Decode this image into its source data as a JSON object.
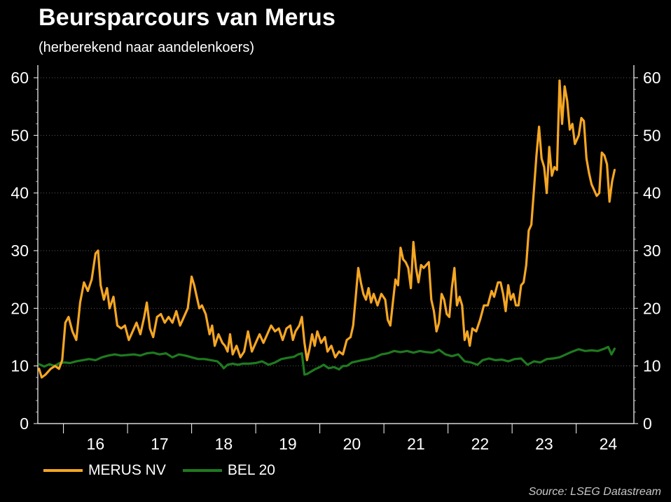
{
  "header": {
    "title": "Beursparcours van Merus",
    "subtitle": "(herberekend naar aandelenkoers)"
  },
  "source": "Source: LSEG Datastream",
  "chart_data": {
    "type": "line",
    "title": "Beursparcours van Merus",
    "subtitle": "(herberekend naar aandelenkoers)",
    "x_range": [
      2015.6,
      2024.9
    ],
    "ylim": [
      0,
      60
    ],
    "y_ticks": [
      0,
      10,
      20,
      30,
      40,
      50,
      60
    ],
    "y_tick_labels": [
      "0",
      "10",
      "20",
      "30",
      "40",
      "50",
      "60"
    ],
    "secondary_y_axis": true,
    "x_ticks": [
      {
        "label": "16",
        "year": 2016
      },
      {
        "label": "17",
        "year": 2017
      },
      {
        "label": "18",
        "year": 2018
      },
      {
        "label": "19",
        "year": 2019
      },
      {
        "label": "20",
        "year": 2020
      },
      {
        "label": "21",
        "year": 2021
      },
      {
        "label": "22",
        "year": 2022
      },
      {
        "label": "23",
        "year": 2023
      },
      {
        "label": "24",
        "year": 2024
      }
    ],
    "grid": "horizontal-dotted",
    "legend_position": "bottom-left",
    "series": [
      {
        "name": "MERUS NV",
        "color": "#f5a623",
        "points": [
          [
            2015.62,
            9.5
          ],
          [
            2015.66,
            8.0
          ],
          [
            2015.72,
            8.5
          ],
          [
            2015.8,
            9.5
          ],
          [
            2015.87,
            10.0
          ],
          [
            2015.93,
            9.5
          ],
          [
            2015.98,
            11.0
          ],
          [
            2016.03,
            17.5
          ],
          [
            2016.08,
            18.5
          ],
          [
            2016.14,
            16.0
          ],
          [
            2016.2,
            14.5
          ],
          [
            2016.26,
            21.0
          ],
          [
            2016.32,
            24.5
          ],
          [
            2016.38,
            23.0
          ],
          [
            2016.44,
            25.0
          ],
          [
            2016.5,
            29.5
          ],
          [
            2016.54,
            30.0
          ],
          [
            2016.58,
            24.0
          ],
          [
            2016.63,
            21.5
          ],
          [
            2016.68,
            23.5
          ],
          [
            2016.72,
            20.0
          ],
          [
            2016.78,
            22.0
          ],
          [
            2016.84,
            17.0
          ],
          [
            2016.9,
            16.5
          ],
          [
            2016.96,
            17.0
          ],
          [
            2017.02,
            14.5
          ],
          [
            2017.08,
            16.0
          ],
          [
            2017.14,
            17.5
          ],
          [
            2017.2,
            15.5
          ],
          [
            2017.26,
            18.5
          ],
          [
            2017.3,
            21.0
          ],
          [
            2017.35,
            16.5
          ],
          [
            2017.4,
            15.0
          ],
          [
            2017.46,
            18.5
          ],
          [
            2017.52,
            19.0
          ],
          [
            2017.58,
            17.5
          ],
          [
            2017.64,
            18.5
          ],
          [
            2017.7,
            17.5
          ],
          [
            2017.76,
            19.5
          ],
          [
            2017.82,
            17.0
          ],
          [
            2017.88,
            18.5
          ],
          [
            2017.94,
            20.0
          ],
          [
            2018.0,
            25.5
          ],
          [
            2018.04,
            24.0
          ],
          [
            2018.08,
            22.0
          ],
          [
            2018.12,
            20.0
          ],
          [
            2018.16,
            20.5
          ],
          [
            2018.22,
            19.0
          ],
          [
            2018.28,
            15.5
          ],
          [
            2018.32,
            17.0
          ],
          [
            2018.36,
            13.5
          ],
          [
            2018.42,
            15.5
          ],
          [
            2018.48,
            14.0
          ],
          [
            2018.52,
            13.5
          ],
          [
            2018.56,
            12.5
          ],
          [
            2018.6,
            15.5
          ],
          [
            2018.64,
            12.0
          ],
          [
            2018.7,
            13.5
          ],
          [
            2018.76,
            11.5
          ],
          [
            2018.82,
            12.5
          ],
          [
            2018.88,
            16.0
          ],
          [
            2018.94,
            12.5
          ],
          [
            2019.0,
            14.0
          ],
          [
            2019.06,
            15.5
          ],
          [
            2019.12,
            14.0
          ],
          [
            2019.18,
            15.5
          ],
          [
            2019.24,
            17.0
          ],
          [
            2019.3,
            16.0
          ],
          [
            2019.36,
            16.5
          ],
          [
            2019.42,
            14.5
          ],
          [
            2019.48,
            16.5
          ],
          [
            2019.54,
            17.0
          ],
          [
            2019.58,
            14.5
          ],
          [
            2019.62,
            16.0
          ],
          [
            2019.68,
            17.0
          ],
          [
            2019.72,
            18.5
          ],
          [
            2019.76,
            14.0
          ],
          [
            2019.8,
            11.0
          ],
          [
            2019.84,
            13.0
          ],
          [
            2019.88,
            15.5
          ],
          [
            2019.92,
            13.5
          ],
          [
            2019.96,
            16.0
          ],
          [
            2020.02,
            14.0
          ],
          [
            2020.08,
            15.0
          ],
          [
            2020.12,
            12.5
          ],
          [
            2020.18,
            13.5
          ],
          [
            2020.24,
            11.5
          ],
          [
            2020.3,
            12.5
          ],
          [
            2020.36,
            12.0
          ],
          [
            2020.42,
            14.5
          ],
          [
            2020.48,
            15.0
          ],
          [
            2020.52,
            17.0
          ],
          [
            2020.56,
            22.0
          ],
          [
            2020.6,
            27.0
          ],
          [
            2020.64,
            24.5
          ],
          [
            2020.68,
            22.5
          ],
          [
            2020.72,
            21.5
          ],
          [
            2020.76,
            23.5
          ],
          [
            2020.8,
            21.0
          ],
          [
            2020.84,
            22.5
          ],
          [
            2020.9,
            20.5
          ],
          [
            2020.96,
            22.5
          ],
          [
            2021.02,
            21.5
          ],
          [
            2021.06,
            18.0
          ],
          [
            2021.1,
            17.0
          ],
          [
            2021.14,
            21.0
          ],
          [
            2021.18,
            25.0
          ],
          [
            2021.22,
            24.0
          ],
          [
            2021.26,
            30.5
          ],
          [
            2021.3,
            28.5
          ],
          [
            2021.34,
            28.0
          ],
          [
            2021.38,
            27.0
          ],
          [
            2021.42,
            23.5
          ],
          [
            2021.46,
            31.5
          ],
          [
            2021.5,
            27.0
          ],
          [
            2021.54,
            24.5
          ],
          [
            2021.58,
            27.5
          ],
          [
            2021.62,
            27.0
          ],
          [
            2021.66,
            27.5
          ],
          [
            2021.7,
            28.0
          ],
          [
            2021.74,
            21.5
          ],
          [
            2021.78,
            19.5
          ],
          [
            2021.82,
            16.0
          ],
          [
            2021.86,
            17.5
          ],
          [
            2021.9,
            22.5
          ],
          [
            2021.94,
            21.5
          ],
          [
            2021.98,
            19.0
          ],
          [
            2022.02,
            18.5
          ],
          [
            2022.06,
            23.5
          ],
          [
            2022.1,
            27.0
          ],
          [
            2022.14,
            20.5
          ],
          [
            2022.18,
            22.0
          ],
          [
            2022.22,
            20.5
          ],
          [
            2022.26,
            14.5
          ],
          [
            2022.3,
            16.0
          ],
          [
            2022.34,
            13.5
          ],
          [
            2022.38,
            16.5
          ],
          [
            2022.44,
            16.0
          ],
          [
            2022.5,
            18.0
          ],
          [
            2022.56,
            20.5
          ],
          [
            2022.62,
            20.5
          ],
          [
            2022.68,
            23.0
          ],
          [
            2022.72,
            22.0
          ],
          [
            2022.78,
            24.5
          ],
          [
            2022.82,
            24.5
          ],
          [
            2022.86,
            22.5
          ],
          [
            2022.9,
            19.5
          ],
          [
            2022.94,
            24.0
          ],
          [
            2022.98,
            21.5
          ],
          [
            2023.02,
            22.5
          ],
          [
            2023.06,
            20.5
          ],
          [
            2023.1,
            20.5
          ],
          [
            2023.14,
            24.0
          ],
          [
            2023.18,
            24.5
          ],
          [
            2023.22,
            27.5
          ],
          [
            2023.26,
            33.5
          ],
          [
            2023.3,
            34.5
          ],
          [
            2023.34,
            40.5
          ],
          [
            2023.38,
            46.5
          ],
          [
            2023.42,
            51.5
          ],
          [
            2023.46,
            46.0
          ],
          [
            2023.5,
            44.5
          ],
          [
            2023.54,
            40.0
          ],
          [
            2023.58,
            48.0
          ],
          [
            2023.62,
            43.0
          ],
          [
            2023.66,
            44.5
          ],
          [
            2023.7,
            44.0
          ],
          [
            2023.74,
            59.5
          ],
          [
            2023.78,
            52.0
          ],
          [
            2023.82,
            58.5
          ],
          [
            2023.86,
            56.0
          ],
          [
            2023.9,
            51.0
          ],
          [
            2023.94,
            52.0
          ],
          [
            2023.98,
            48.5
          ],
          [
            2024.04,
            50.0
          ],
          [
            2024.08,
            53.0
          ],
          [
            2024.12,
            52.5
          ],
          [
            2024.16,
            46.0
          ],
          [
            2024.2,
            43.5
          ],
          [
            2024.24,
            41.5
          ],
          [
            2024.28,
            40.5
          ],
          [
            2024.32,
            39.5
          ],
          [
            2024.36,
            40.0
          ],
          [
            2024.4,
            47.0
          ],
          [
            2024.44,
            46.5
          ],
          [
            2024.48,
            45.0
          ],
          [
            2024.52,
            38.5
          ],
          [
            2024.56,
            42.0
          ],
          [
            2024.6,
            44.0
          ]
        ]
      },
      {
        "name": "BEL 20",
        "color": "#1f7a1f",
        "points": [
          [
            2015.62,
            10.3
          ],
          [
            2015.7,
            9.9
          ],
          [
            2015.78,
            10.3
          ],
          [
            2015.86,
            10.0
          ],
          [
            2015.94,
            10.5
          ],
          [
            2016.02,
            10.6
          ],
          [
            2016.1,
            10.5
          ],
          [
            2016.2,
            10.8
          ],
          [
            2016.3,
            11.0
          ],
          [
            2016.4,
            11.2
          ],
          [
            2016.5,
            11.0
          ],
          [
            2016.6,
            11.5
          ],
          [
            2016.7,
            11.8
          ],
          [
            2016.8,
            12.0
          ],
          [
            2016.9,
            11.8
          ],
          [
            2017.0,
            11.9
          ],
          [
            2017.1,
            12.0
          ],
          [
            2017.2,
            11.8
          ],
          [
            2017.3,
            12.2
          ],
          [
            2017.4,
            12.3
          ],
          [
            2017.5,
            12.0
          ],
          [
            2017.6,
            12.2
          ],
          [
            2017.7,
            11.5
          ],
          [
            2017.8,
            12.0
          ],
          [
            2017.9,
            11.8
          ],
          [
            2018.0,
            11.5
          ],
          [
            2018.1,
            11.2
          ],
          [
            2018.2,
            11.2
          ],
          [
            2018.3,
            11.0
          ],
          [
            2018.4,
            10.8
          ],
          [
            2018.46,
            10.2
          ],
          [
            2018.5,
            9.6
          ],
          [
            2018.56,
            10.2
          ],
          [
            2018.64,
            10.4
          ],
          [
            2018.72,
            10.2
          ],
          [
            2018.8,
            10.4
          ],
          [
            2018.9,
            10.4
          ],
          [
            2019.0,
            10.5
          ],
          [
            2019.1,
            10.8
          ],
          [
            2019.2,
            10.2
          ],
          [
            2019.3,
            10.6
          ],
          [
            2019.4,
            11.2
          ],
          [
            2019.5,
            11.4
          ],
          [
            2019.6,
            11.6
          ],
          [
            2019.66,
            12.0
          ],
          [
            2019.72,
            12.2
          ],
          [
            2019.76,
            8.5
          ],
          [
            2019.8,
            8.6
          ],
          [
            2019.86,
            9.0
          ],
          [
            2019.92,
            9.4
          ],
          [
            2020.0,
            9.8
          ],
          [
            2020.06,
            10.2
          ],
          [
            2020.14,
            9.6
          ],
          [
            2020.22,
            9.8
          ],
          [
            2020.3,
            9.4
          ],
          [
            2020.36,
            10.0
          ],
          [
            2020.42,
            10.0
          ],
          [
            2020.5,
            10.6
          ],
          [
            2020.58,
            10.8
          ],
          [
            2020.66,
            11.0
          ],
          [
            2020.76,
            11.2
          ],
          [
            2020.86,
            11.5
          ],
          [
            2020.96,
            12.0
          ],
          [
            2021.06,
            12.2
          ],
          [
            2021.16,
            12.6
          ],
          [
            2021.26,
            12.4
          ],
          [
            2021.36,
            12.6
          ],
          [
            2021.46,
            12.3
          ],
          [
            2021.56,
            12.6
          ],
          [
            2021.66,
            12.4
          ],
          [
            2021.76,
            12.3
          ],
          [
            2021.86,
            12.8
          ],
          [
            2021.96,
            12.0
          ],
          [
            2022.06,
            11.7
          ],
          [
            2022.16,
            12.0
          ],
          [
            2022.26,
            10.8
          ],
          [
            2022.36,
            10.6
          ],
          [
            2022.46,
            10.2
          ],
          [
            2022.54,
            11.0
          ],
          [
            2022.64,
            11.3
          ],
          [
            2022.74,
            11.0
          ],
          [
            2022.84,
            11.1
          ],
          [
            2022.94,
            10.8
          ],
          [
            2023.04,
            11.2
          ],
          [
            2023.14,
            11.3
          ],
          [
            2023.24,
            10.2
          ],
          [
            2023.34,
            10.8
          ],
          [
            2023.44,
            10.6
          ],
          [
            2023.54,
            11.2
          ],
          [
            2023.64,
            11.3
          ],
          [
            2023.74,
            11.5
          ],
          [
            2023.84,
            12.0
          ],
          [
            2023.94,
            12.5
          ],
          [
            2024.04,
            12.9
          ],
          [
            2024.14,
            12.6
          ],
          [
            2024.24,
            12.7
          ],
          [
            2024.34,
            12.6
          ],
          [
            2024.44,
            13.0
          ],
          [
            2024.5,
            13.3
          ],
          [
            2024.55,
            12.0
          ],
          [
            2024.58,
            12.6
          ],
          [
            2024.6,
            13.0
          ]
        ]
      }
    ]
  }
}
